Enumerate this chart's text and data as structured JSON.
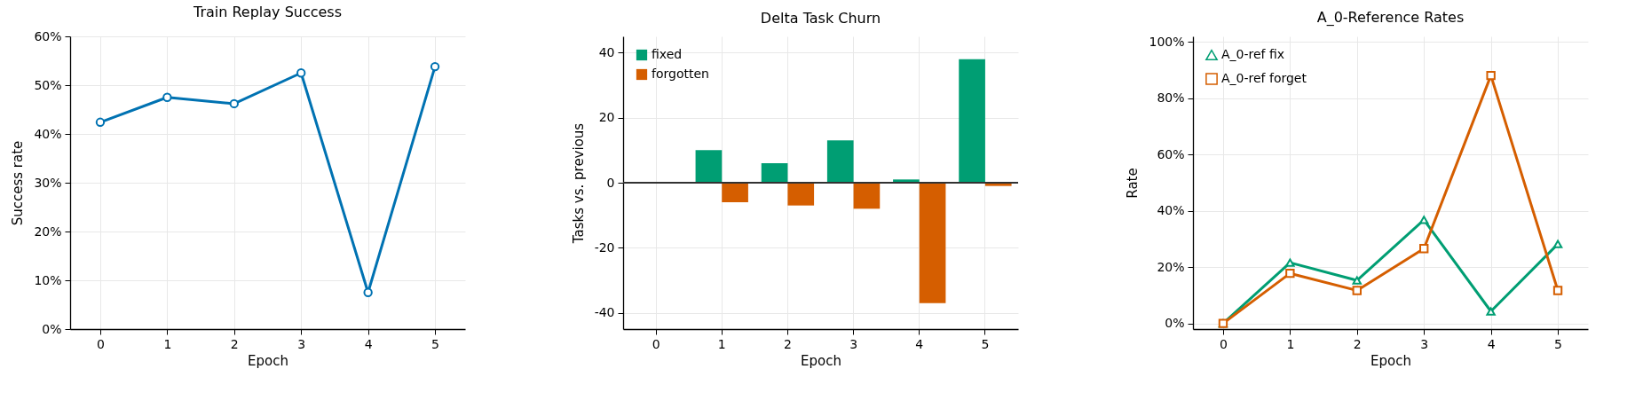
{
  "chart_data": [
    {
      "type": "line",
      "title": "Train Replay Success",
      "xlabel": "Epoch",
      "ylabel": "Success rate",
      "x": [
        0,
        1,
        2,
        3,
        4,
        5
      ],
      "xlim": [
        -0.45,
        5.45
      ],
      "xticks": [
        0,
        1,
        2,
        3,
        4,
        5
      ],
      "ylim": [
        0,
        60
      ],
      "yticks": [
        {
          "value": 0,
          "label": "0%"
        },
        {
          "value": 10,
          "label": "10%"
        },
        {
          "value": 20,
          "label": "20%"
        },
        {
          "value": 30,
          "label": "30%"
        },
        {
          "value": 40,
          "label": "40%"
        },
        {
          "value": 50,
          "label": "50%"
        },
        {
          "value": 60,
          "label": "60%"
        }
      ],
      "grid": true,
      "marker": "circle",
      "series": [
        {
          "color": "#0072b2",
          "values": [
            42.4,
            47.5,
            46.2,
            52.5,
            7.5,
            53.8
          ]
        }
      ]
    },
    {
      "type": "bar",
      "title": "Delta Task Churn",
      "xlabel": "Epoch",
      "ylabel": "Tasks vs. previous",
      "categories": [
        "0",
        "1",
        "2",
        "3",
        "4",
        "5"
      ],
      "ylim": [
        -45,
        45
      ],
      "yticks": [
        -40,
        -20,
        0,
        20,
        40
      ],
      "grid": true,
      "legend": "top left",
      "ref_lines": [
        {
          "axis": "y",
          "value": 0,
          "color": "#333333"
        }
      ],
      "series": [
        {
          "name": "fixed",
          "color": "#009e73",
          "values": [
            0,
            10,
            6,
            13,
            1,
            38
          ]
        },
        {
          "name": "forgotten",
          "color": "#d55e00",
          "values": [
            0,
            -6,
            -7,
            -8,
            -37,
            -1
          ]
        }
      ]
    },
    {
      "type": "line",
      "title": "A_0-Reference Rates",
      "xlabel": "Epoch",
      "ylabel": "Rate",
      "x": [
        0,
        1,
        2,
        3,
        4,
        5
      ],
      "xlim": [
        -0.45,
        5.45
      ],
      "xticks": [
        0,
        1,
        2,
        3,
        4,
        5
      ],
      "ylim": [
        -2,
        102
      ],
      "yticks": [
        {
          "value": 0,
          "label": "0%"
        },
        {
          "value": 20,
          "label": "20%"
        },
        {
          "value": 40,
          "label": "40%"
        },
        {
          "value": 60,
          "label": "60%"
        },
        {
          "value": 80,
          "label": "80%"
        },
        {
          "value": 100,
          "label": "100%"
        }
      ],
      "grid": true,
      "legend": "top left",
      "series": [
        {
          "name": "A_0-ref fix",
          "color": "#009e73",
          "marker": "triangle",
          "values": [
            0,
            21.6,
            15.3,
            36.8,
            4.3,
            28.2
          ]
        },
        {
          "name": "A_0-ref forget",
          "color": "#d55e00",
          "marker": "square",
          "values": [
            0,
            17.8,
            11.7,
            26.6,
            88.1,
            11.7
          ]
        }
      ]
    }
  ]
}
